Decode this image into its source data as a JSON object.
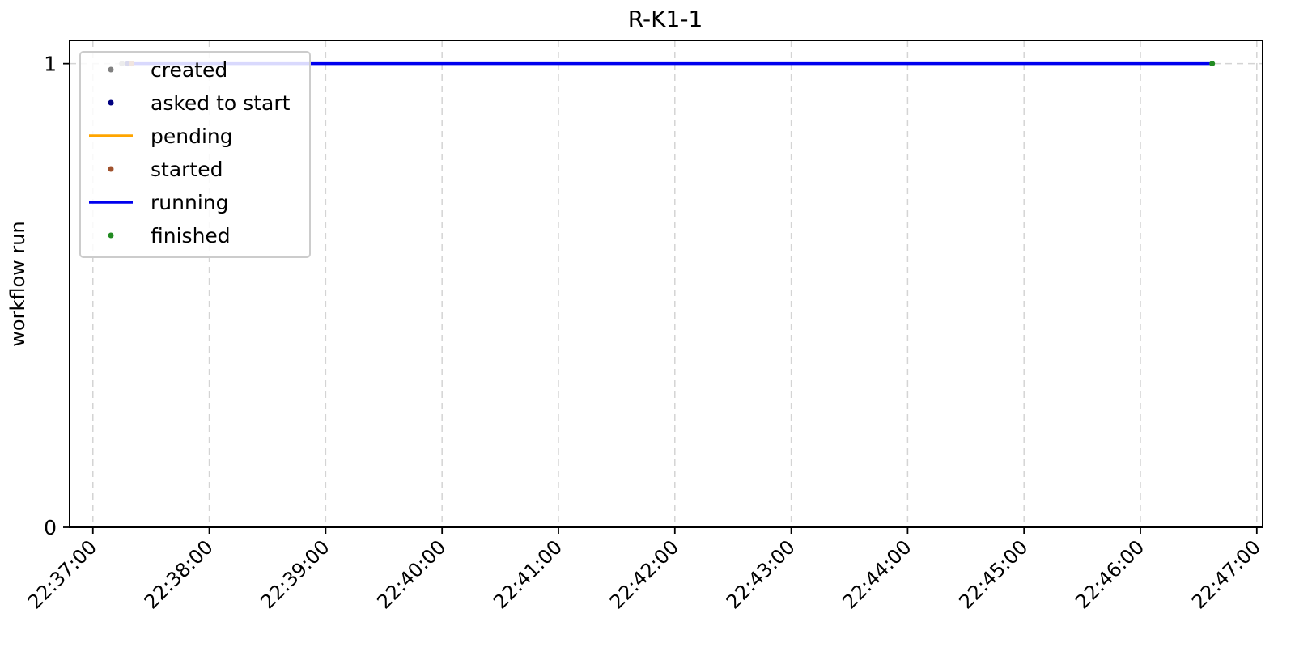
{
  "chart_data": {
    "type": "line",
    "title": "R-K1-1",
    "xlabel": "",
    "ylabel": "workflow run",
    "x_axis_kind": "time",
    "xlim": [
      "22:36:48",
      "22:47:03"
    ],
    "ylim": [
      0,
      1.05
    ],
    "x_ticks": [
      "22:37:00",
      "22:38:00",
      "22:39:00",
      "22:40:00",
      "22:41:00",
      "22:42:00",
      "22:43:00",
      "22:44:00",
      "22:45:00",
      "22:46:00",
      "22:47:00"
    ],
    "y_ticks": [
      "0",
      "1"
    ],
    "grid": true,
    "legend_position": "top-left",
    "series": [
      {
        "name": "created",
        "kind": "point",
        "color": "#808080",
        "points": [
          {
            "x": "22:37:15",
            "y": 1
          }
        ]
      },
      {
        "name": "asked to start",
        "kind": "point",
        "color": "#000080",
        "points": [
          {
            "x": "22:37:18",
            "y": 1
          }
        ]
      },
      {
        "name": "pending",
        "kind": "segment",
        "color": "#ffa500",
        "segments": [
          {
            "start": "22:37:18",
            "end": "22:37:20",
            "y": 1
          }
        ]
      },
      {
        "name": "started",
        "kind": "point",
        "color": "#a0522d",
        "points": [
          {
            "x": "22:37:20",
            "y": 1
          }
        ]
      },
      {
        "name": "running",
        "kind": "segment",
        "color": "#0000ee",
        "segments": [
          {
            "start": "22:37:20",
            "end": "22:46:37",
            "y": 1
          }
        ]
      },
      {
        "name": "finished",
        "kind": "point",
        "color": "#228b22",
        "points": [
          {
            "x": "22:46:37",
            "y": 1
          }
        ]
      }
    ]
  }
}
